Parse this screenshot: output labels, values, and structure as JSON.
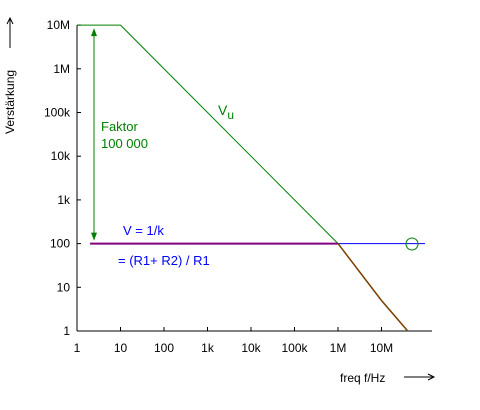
{
  "chart_data": {
    "type": "line",
    "x_scale": "log",
    "y_scale": "log",
    "xlabel": "freq f/Hz",
    "ylabel": "Verstärkung",
    "x_ticks": [
      {
        "value": 1,
        "label": "1"
      },
      {
        "value": 10,
        "label": "10"
      },
      {
        "value": 100,
        "label": "100"
      },
      {
        "value": 1000,
        "label": "1k"
      },
      {
        "value": 10000,
        "label": "10k"
      },
      {
        "value": 100000,
        "label": "100k"
      },
      {
        "value": 1000000,
        "label": "1M"
      },
      {
        "value": 10000000,
        "label": "10M"
      }
    ],
    "y_ticks": [
      {
        "value": 1,
        "label": "1"
      },
      {
        "value": 10,
        "label": "10"
      },
      {
        "value": 100,
        "label": "100"
      },
      {
        "value": 1000,
        "label": "1k"
      },
      {
        "value": 10000,
        "label": "10k"
      },
      {
        "value": 100000,
        "label": "100k"
      },
      {
        "value": 1000000,
        "label": "1M"
      },
      {
        "value": 10000000,
        "label": "10M"
      }
    ],
    "xlim": [
      1,
      100000000
    ],
    "ylim": [
      1,
      10000000
    ],
    "grid": false,
    "series": [
      {
        "name": "Vu",
        "color": "#008000",
        "points": [
          [
            1,
            10000000
          ],
          [
            10,
            10000000
          ],
          [
            1000000,
            100
          ],
          [
            10000000,
            5
          ],
          [
            40000000,
            1
          ]
        ]
      },
      {
        "name": "",
        "color": "#0000ff",
        "points": [
          [
            2,
            100
          ],
          [
            100000000,
            100
          ]
        ]
      },
      {
        "name": "",
        "color": "#800080",
        "points": [
          [
            2,
            100
          ],
          [
            1000000,
            100
          ]
        ]
      },
      {
        "name": "",
        "color": "#804000",
        "points": [
          [
            1000000,
            100
          ],
          [
            10000000,
            5
          ],
          [
            40000000,
            1
          ]
        ]
      }
    ],
    "annotations": {
      "vu_label": "V",
      "vu_subscript": "u",
      "factor_line1": "Faktor",
      "factor_line2": "100 000",
      "v_formula": "V =  1/k",
      "r_formula": "= (R1+ R2) / R1"
    },
    "colors": {
      "axis": "#000000",
      "open_loop": "#008000",
      "feedback": "#0000ff",
      "closed_loop": "#800080",
      "rolloff": "#804000",
      "marker": "#008000"
    }
  }
}
